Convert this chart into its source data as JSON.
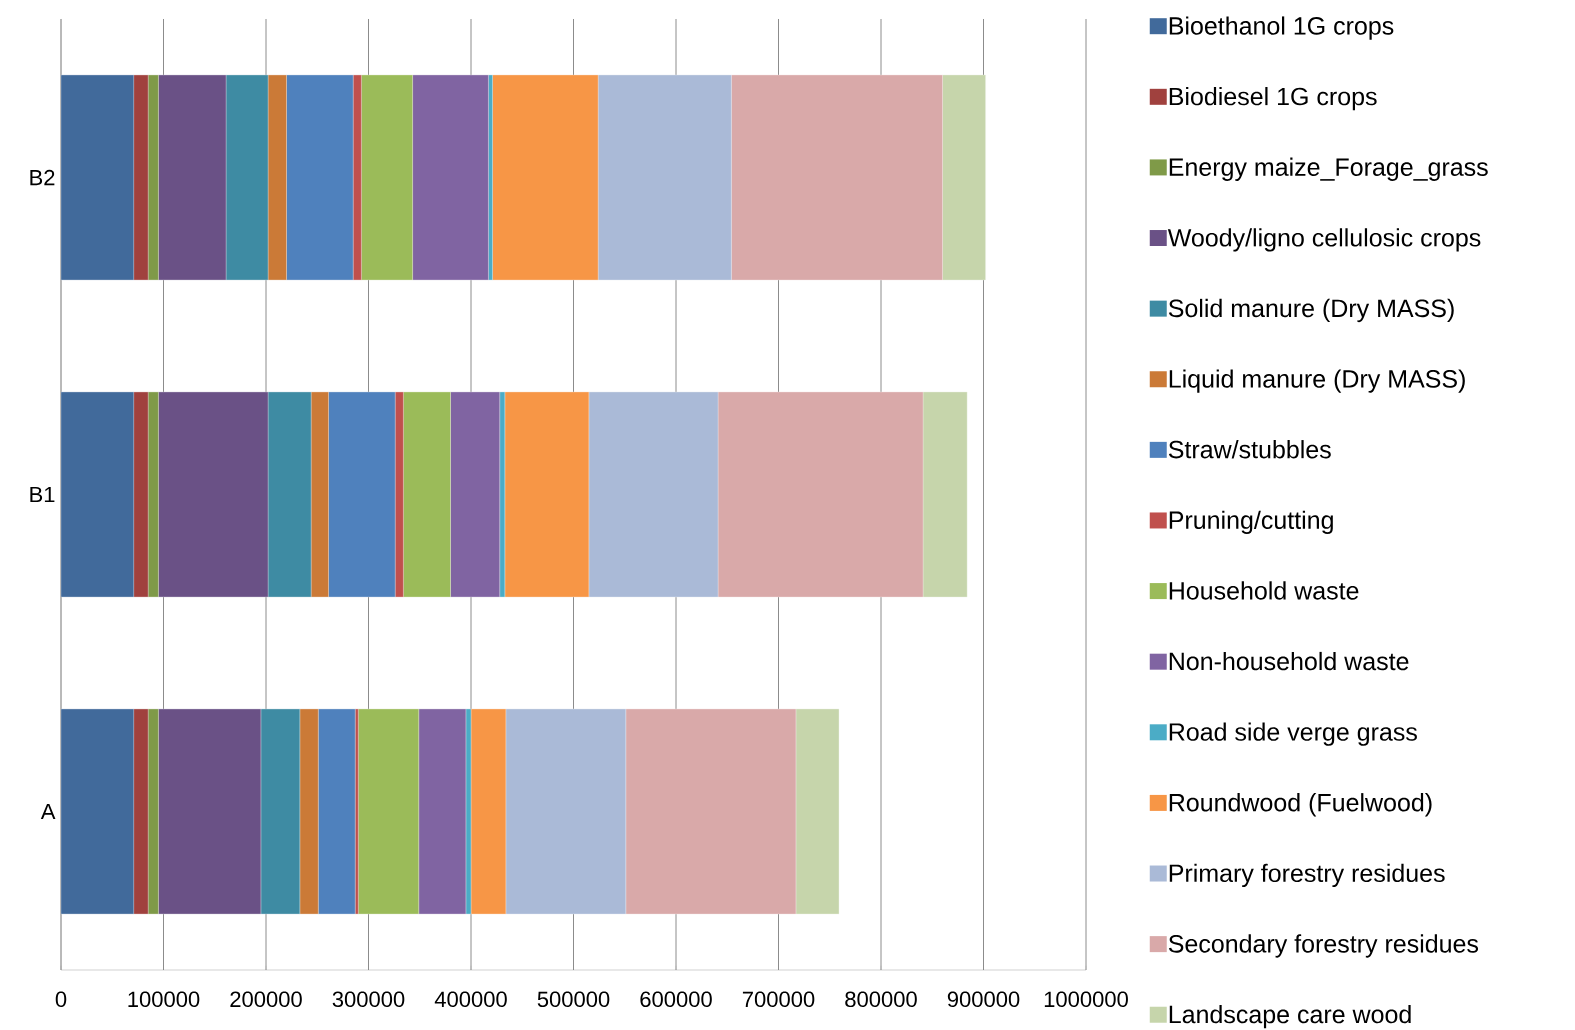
{
  "chart_data": {
    "type": "bar",
    "orientation": "horizontal",
    "stacked": true,
    "categories": [
      "B2",
      "B1",
      "A"
    ],
    "series": [
      {
        "name": "Bioethanol 1G crops",
        "color": "#416a9b",
        "values": [
          71000,
          71000,
          71000
        ]
      },
      {
        "name": "Biodiesel 1G crops",
        "color": "#a0413e",
        "values": [
          14000,
          14000,
          14000
        ]
      },
      {
        "name": "Energy maize_Forage_grass",
        "color": "#7f9a48",
        "values": [
          10000,
          10000,
          10000
        ]
      },
      {
        "name": "Woody/ligno cellulosic crops",
        "color": "#6a5186",
        "values": [
          66000,
          107000,
          100000
        ]
      },
      {
        "name": "Solid manure (Dry MASS)",
        "color": "#3e8ba3",
        "values": [
          41000,
          42000,
          38000
        ]
      },
      {
        "name": "Liquid manure (Dry MASS)",
        "color": "#cb7a37",
        "values": [
          18000,
          17000,
          18000
        ]
      },
      {
        "name": "Straw/stubbles",
        "color": "#4f81bd",
        "values": [
          65000,
          65000,
          36000
        ]
      },
      {
        "name": "Pruning/cutting",
        "color": "#c0504d",
        "values": [
          8000,
          8000,
          3000
        ]
      },
      {
        "name": "Household waste",
        "color": "#9bbb59",
        "values": [
          50000,
          46000,
          59000
        ]
      },
      {
        "name": "Non-household waste",
        "color": "#8064a2",
        "values": [
          74000,
          48000,
          46000
        ]
      },
      {
        "name": "Road side verge grass",
        "color": "#4bacc6",
        "values": [
          4000,
          5000,
          5000
        ]
      },
      {
        "name": "Roundwood (Fuelwood)",
        "color": "#f79646",
        "values": [
          103000,
          82000,
          34000
        ]
      },
      {
        "name": "Primary forestry residues",
        "color": "#aabad7",
        "values": [
          130000,
          126000,
          117000
        ]
      },
      {
        "name": "Secondary forestry residues",
        "color": "#d9a9a9",
        "values": [
          206000,
          200000,
          166000
        ]
      },
      {
        "name": "Landscape care wood",
        "color": "#c6d5ab",
        "values": [
          42000,
          43000,
          42000
        ]
      }
    ],
    "xlim": [
      0,
      1000000
    ],
    "xticks": [
      0,
      100000,
      200000,
      300000,
      400000,
      500000,
      600000,
      700000,
      800000,
      900000,
      1000000
    ],
    "grid": "x",
    "legend": "right"
  }
}
